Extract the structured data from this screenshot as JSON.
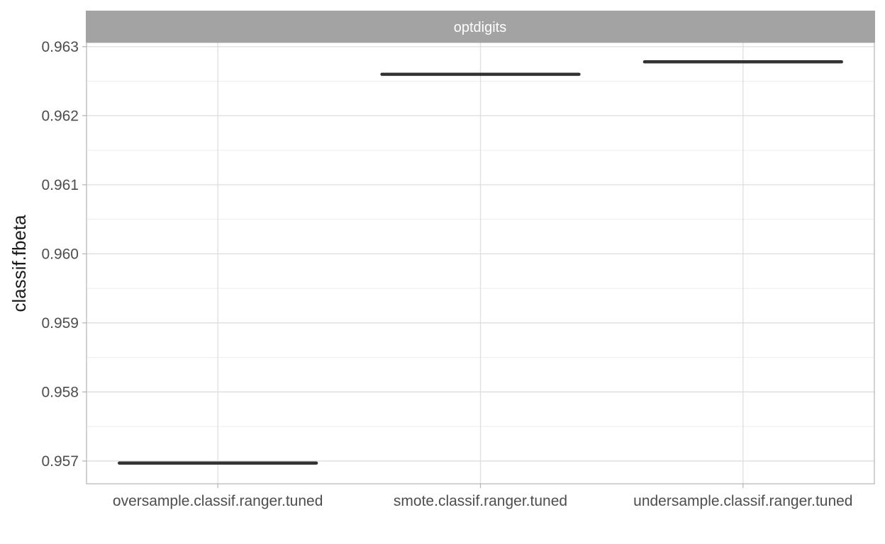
{
  "chart_data": {
    "type": "boxplot",
    "facet": "optdigits",
    "xlabel": "",
    "ylabel": "classif.fbeta",
    "categories": [
      "oversample.classif.ranger.tuned",
      "smote.classif.ranger.tuned",
      "undersample.classif.ranger.tuned"
    ],
    "values": [
      0.95697,
      0.9626,
      0.96278
    ],
    "yticks": [
      0.957,
      0.958,
      0.959,
      0.96,
      0.961,
      0.962,
      0.963
    ],
    "ytick_labels": [
      "0.957",
      "0.958",
      "0.959",
      "0.960",
      "0.961",
      "0.962",
      "0.963"
    ],
    "ylim": [
      0.95667,
      0.96306
    ],
    "grid": true,
    "legend": "none",
    "colors": {
      "strip": "#a3a3a3",
      "box": "#333333",
      "grid_major": "#dedede",
      "grid_minor": "#ececec",
      "panel_border": "#b3b3b3"
    }
  }
}
